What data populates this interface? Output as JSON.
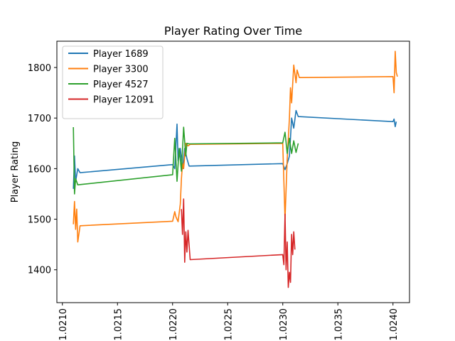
{
  "chart_data": {
    "type": "line",
    "title": "Player Rating Over Time",
    "xlabel": "",
    "ylabel": "Player Rating",
    "xlim": [
      1.02095,
      1.02415
    ],
    "ylim": [
      1335,
      1852
    ],
    "x_ticks": [
      {
        "value": 1.021,
        "label": "1.0210"
      },
      {
        "value": 1.0215,
        "label": "1.0215"
      },
      {
        "value": 1.022,
        "label": "1.0220"
      },
      {
        "value": 1.0225,
        "label": "1.0225"
      },
      {
        "value": 1.023,
        "label": "1.0230"
      },
      {
        "value": 1.0235,
        "label": "1.0235"
      },
      {
        "value": 1.024,
        "label": "1.0240"
      }
    ],
    "y_ticks": [
      {
        "value": 1400,
        "label": "1400"
      },
      {
        "value": 1500,
        "label": "1500"
      },
      {
        "value": 1600,
        "label": "1600"
      },
      {
        "value": 1700,
        "label": "1700"
      },
      {
        "value": 1800,
        "label": "1800"
      }
    ],
    "grid": false,
    "legend_position": "top-left",
    "series": [
      {
        "name": "Player 1689",
        "color": "#1f77b4",
        "points": [
          [
            1.0211,
            1560
          ],
          [
            1.02111,
            1625
          ],
          [
            1.02112,
            1575
          ],
          [
            1.02114,
            1600
          ],
          [
            1.02116,
            1592
          ],
          [
            1.022,
            1608
          ],
          [
            1.02202,
            1600
          ],
          [
            1.02204,
            1688
          ],
          [
            1.02205,
            1615
          ],
          [
            1.02207,
            1640
          ],
          [
            1.02209,
            1600
          ],
          [
            1.02211,
            1640
          ],
          [
            1.02213,
            1620
          ],
          [
            1.02215,
            1605
          ],
          [
            1.023,
            1610
          ],
          [
            1.02302,
            1598
          ],
          [
            1.02304,
            1610
          ],
          [
            1.02306,
            1625
          ],
          [
            1.02308,
            1700
          ],
          [
            1.0231,
            1680
          ],
          [
            1.02312,
            1715
          ],
          [
            1.02314,
            1703
          ],
          [
            1.024,
            1693
          ],
          [
            1.02401,
            1698
          ],
          [
            1.02402,
            1683
          ],
          [
            1.02403,
            1693
          ]
        ]
      },
      {
        "name": "Player 3300",
        "color": "#ff7f0e",
        "points": [
          [
            1.0211,
            1490
          ],
          [
            1.02111,
            1535
          ],
          [
            1.02112,
            1480
          ],
          [
            1.02113,
            1520
          ],
          [
            1.02114,
            1455
          ],
          [
            1.02116,
            1487
          ],
          [
            1.022,
            1496
          ],
          [
            1.02202,
            1515
          ],
          [
            1.02203,
            1505
          ],
          [
            1.02205,
            1495
          ],
          [
            1.02207,
            1530
          ],
          [
            1.02208,
            1580
          ],
          [
            1.02209,
            1610
          ],
          [
            1.0221,
            1600
          ],
          [
            1.02212,
            1650
          ],
          [
            1.02214,
            1645
          ],
          [
            1.02216,
            1648
          ],
          [
            1.023,
            1650
          ],
          [
            1.02302,
            1500
          ],
          [
            1.02304,
            1620
          ],
          [
            1.02306,
            1700
          ],
          [
            1.02307,
            1760
          ],
          [
            1.02308,
            1730
          ],
          [
            1.0231,
            1805
          ],
          [
            1.02312,
            1770
          ],
          [
            1.02313,
            1795
          ],
          [
            1.02315,
            1780
          ],
          [
            1.024,
            1782
          ],
          [
            1.02401,
            1750
          ],
          [
            1.02402,
            1832
          ],
          [
            1.02403,
            1790
          ],
          [
            1.02404,
            1782
          ]
        ]
      },
      {
        "name": "Player 4527",
        "color": "#2ca02c",
        "points": [
          [
            1.0211,
            1682
          ],
          [
            1.02111,
            1550
          ],
          [
            1.02112,
            1580
          ],
          [
            1.02114,
            1568
          ],
          [
            1.022,
            1588
          ],
          [
            1.02202,
            1660
          ],
          [
            1.02204,
            1575
          ],
          [
            1.02206,
            1640
          ],
          [
            1.02208,
            1595
          ],
          [
            1.0221,
            1682
          ],
          [
            1.02212,
            1625
          ],
          [
            1.02213,
            1650
          ],
          [
            1.02215,
            1649
          ],
          [
            1.023,
            1651
          ],
          [
            1.02302,
            1672
          ],
          [
            1.02304,
            1630
          ],
          [
            1.02306,
            1660
          ],
          [
            1.02308,
            1630
          ],
          [
            1.0231,
            1655
          ],
          [
            1.02312,
            1632
          ],
          [
            1.02314,
            1650
          ]
        ]
      },
      {
        "name": "Player 12091",
        "color": "#d62728",
        "points": [
          [
            1.02208,
            1520
          ],
          [
            1.02209,
            1470
          ],
          [
            1.0221,
            1540
          ],
          [
            1.02211,
            1415
          ],
          [
            1.02212,
            1475
          ],
          [
            1.02213,
            1435
          ],
          [
            1.02214,
            1478
          ],
          [
            1.02216,
            1420
          ],
          [
            1.023,
            1430
          ],
          [
            1.02301,
            1410
          ],
          [
            1.02302,
            1510
          ],
          [
            1.02303,
            1400
          ],
          [
            1.02304,
            1455
          ],
          [
            1.02305,
            1365
          ],
          [
            1.02306,
            1395
          ],
          [
            1.02307,
            1375
          ],
          [
            1.02308,
            1470
          ],
          [
            1.02309,
            1430
          ],
          [
            1.0231,
            1475
          ],
          [
            1.02311,
            1440
          ]
        ]
      }
    ]
  }
}
